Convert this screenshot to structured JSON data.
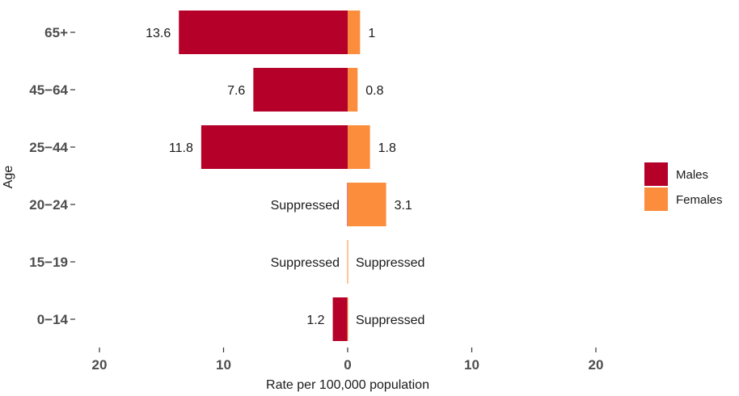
{
  "chart_data": {
    "type": "bar",
    "orientation": "horizontal",
    "layout": "diverging",
    "categories": [
      "65+",
      "45−64",
      "25−44",
      "20−24",
      "15−19",
      "0−14"
    ],
    "series": [
      {
        "name": "Males",
        "color": "#b5002a",
        "direction": "left",
        "values": [
          13.6,
          7.6,
          11.8,
          null,
          null,
          1.2
        ],
        "labels": [
          "13.6",
          "7.6",
          "11.8",
          "Suppressed",
          "Suppressed",
          "1.2"
        ]
      },
      {
        "name": "Females",
        "color": "#fb8d3d",
        "direction": "right",
        "values": [
          1,
          0.8,
          1.8,
          3.1,
          null,
          null
        ],
        "labels": [
          "1",
          "0.8",
          "1.8",
          "3.1",
          "Suppressed",
          "Suppressed"
        ]
      }
    ],
    "xlabel": "Rate per 100,000 population",
    "ylabel": "Age",
    "xlim": [
      -20,
      20
    ],
    "x_ticks": [
      {
        "value": -20,
        "label": "20"
      },
      {
        "value": -10,
        "label": "10"
      },
      {
        "value": 0,
        "label": "0"
      },
      {
        "value": 10,
        "label": "10"
      },
      {
        "value": 20,
        "label": "20"
      }
    ],
    "grid": false,
    "legend_position": "right",
    "legend": [
      {
        "name": "Males",
        "color": "#b5002a"
      },
      {
        "name": "Females",
        "color": "#fb8d3d"
      }
    ]
  }
}
